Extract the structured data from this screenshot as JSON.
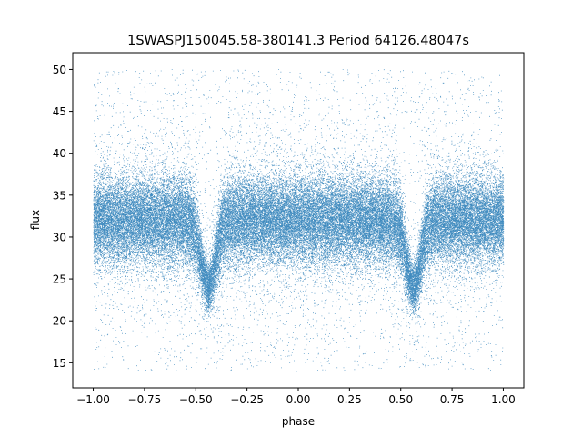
{
  "chart_data": {
    "type": "scatter",
    "title": "1SWASPJ150045.58-380141.3 Period 64126.48047s",
    "xlabel": "phase",
    "ylabel": "flux",
    "xlim": [
      -1.1,
      1.1
    ],
    "ylim": [
      12,
      52
    ],
    "xticks": [
      -1.0,
      -0.75,
      -0.5,
      -0.25,
      0.0,
      0.25,
      0.5,
      0.75,
      1.0
    ],
    "xtick_labels": [
      "−1.00",
      "−0.75",
      "−0.50",
      "−0.25",
      "0.00",
      "0.25",
      "0.50",
      "0.75",
      "1.00"
    ],
    "yticks": [
      15,
      20,
      25,
      30,
      35,
      40,
      45,
      50
    ],
    "ytick_labels": [
      "15",
      "20",
      "25",
      "30",
      "35",
      "40",
      "45",
      "50"
    ],
    "grid": false,
    "marker_color": "#1f77b4",
    "series": [
      {
        "phase_range": [
          -1.0,
          1.0
        ],
        "point_count": 60000,
        "baseline_flux": 32.0,
        "flux_clip": [
          14,
          50
        ],
        "dips": [
          {
            "phase": -0.44,
            "min_flux": 24.0
          },
          {
            "phase": 0.56,
            "min_flux": 24.0
          }
        ]
      }
    ]
  }
}
